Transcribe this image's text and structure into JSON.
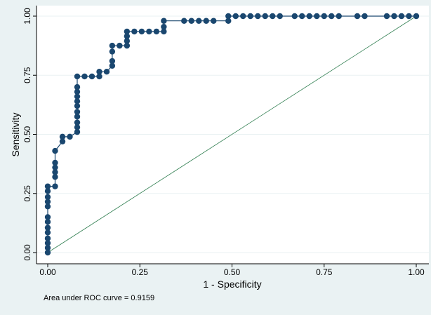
{
  "chart_data": {
    "type": "line",
    "title": "",
    "xlabel": "1 - Specificity",
    "ylabel": "Sensitivity",
    "xlim": [
      0,
      1
    ],
    "ylim": [
      0,
      1
    ],
    "xticks": [
      "0.00",
      "0.25",
      "0.50",
      "0.75",
      "1.00"
    ],
    "yticks": [
      "0.00",
      "0.25",
      "0.50",
      "0.75",
      "1.00"
    ],
    "grid": "horizontal",
    "legend": "none",
    "note": "Area under ROC curve = 0.9159",
    "colors": {
      "background": "#eaf2f3",
      "plot_bg": "#ffffff",
      "curve": "#1a476f",
      "reference": "#2e7d4f",
      "grid": "#eaf2f3"
    },
    "series": [
      {
        "kind": "roc_curve",
        "points": [
          [
            0.0,
            0.0
          ],
          [
            0.0,
            0.02
          ],
          [
            0.0,
            0.04
          ],
          [
            0.0,
            0.06
          ],
          [
            0.0,
            0.085
          ],
          [
            0.0,
            0.105
          ],
          [
            0.0,
            0.13
          ],
          [
            0.0,
            0.15
          ],
          [
            0.0,
            0.195
          ],
          [
            0.0,
            0.215
          ],
          [
            0.0,
            0.235
          ],
          [
            0.0,
            0.26
          ],
          [
            0.0,
            0.28
          ],
          [
            0.02,
            0.28
          ],
          [
            0.02,
            0.32
          ],
          [
            0.02,
            0.34
          ],
          [
            0.02,
            0.36
          ],
          [
            0.02,
            0.38
          ],
          [
            0.02,
            0.43
          ],
          [
            0.04,
            0.47
          ],
          [
            0.04,
            0.49
          ],
          [
            0.06,
            0.49
          ],
          [
            0.08,
            0.51
          ],
          [
            0.08,
            0.53
          ],
          [
            0.08,
            0.55
          ],
          [
            0.08,
            0.575
          ],
          [
            0.08,
            0.595
          ],
          [
            0.08,
            0.62
          ],
          [
            0.08,
            0.64
          ],
          [
            0.08,
            0.66
          ],
          [
            0.08,
            0.68
          ],
          [
            0.08,
            0.7
          ],
          [
            0.08,
            0.745
          ],
          [
            0.1,
            0.745
          ],
          [
            0.12,
            0.745
          ],
          [
            0.14,
            0.745
          ],
          [
            0.14,
            0.765
          ],
          [
            0.16,
            0.765
          ],
          [
            0.175,
            0.79
          ],
          [
            0.175,
            0.81
          ],
          [
            0.175,
            0.85
          ],
          [
            0.175,
            0.875
          ],
          [
            0.195,
            0.875
          ],
          [
            0.215,
            0.875
          ],
          [
            0.215,
            0.895
          ],
          [
            0.215,
            0.915
          ],
          [
            0.215,
            0.935
          ],
          [
            0.235,
            0.935
          ],
          [
            0.255,
            0.935
          ],
          [
            0.275,
            0.935
          ],
          [
            0.295,
            0.935
          ],
          [
            0.315,
            0.935
          ],
          [
            0.315,
            0.955
          ],
          [
            0.315,
            0.98
          ],
          [
            0.37,
            0.98
          ],
          [
            0.39,
            0.98
          ],
          [
            0.41,
            0.98
          ],
          [
            0.43,
            0.98
          ],
          [
            0.45,
            0.98
          ],
          [
            0.49,
            0.98
          ],
          [
            0.49,
            1.0
          ],
          [
            0.51,
            1.0
          ],
          [
            0.53,
            1.0
          ],
          [
            0.55,
            1.0
          ],
          [
            0.57,
            1.0
          ],
          [
            0.59,
            1.0
          ],
          [
            0.61,
            1.0
          ],
          [
            0.63,
            1.0
          ],
          [
            0.67,
            1.0
          ],
          [
            0.69,
            1.0
          ],
          [
            0.71,
            1.0
          ],
          [
            0.73,
            1.0
          ],
          [
            0.75,
            1.0
          ],
          [
            0.77,
            1.0
          ],
          [
            0.79,
            1.0
          ],
          [
            0.84,
            1.0
          ],
          [
            0.86,
            1.0
          ],
          [
            0.92,
            1.0
          ],
          [
            0.94,
            1.0
          ],
          [
            0.96,
            1.0
          ],
          [
            0.98,
            1.0
          ],
          [
            1.0,
            1.0
          ]
        ]
      },
      {
        "kind": "reference_line",
        "points": [
          [
            0,
            0
          ],
          [
            1,
            1
          ]
        ]
      }
    ]
  }
}
